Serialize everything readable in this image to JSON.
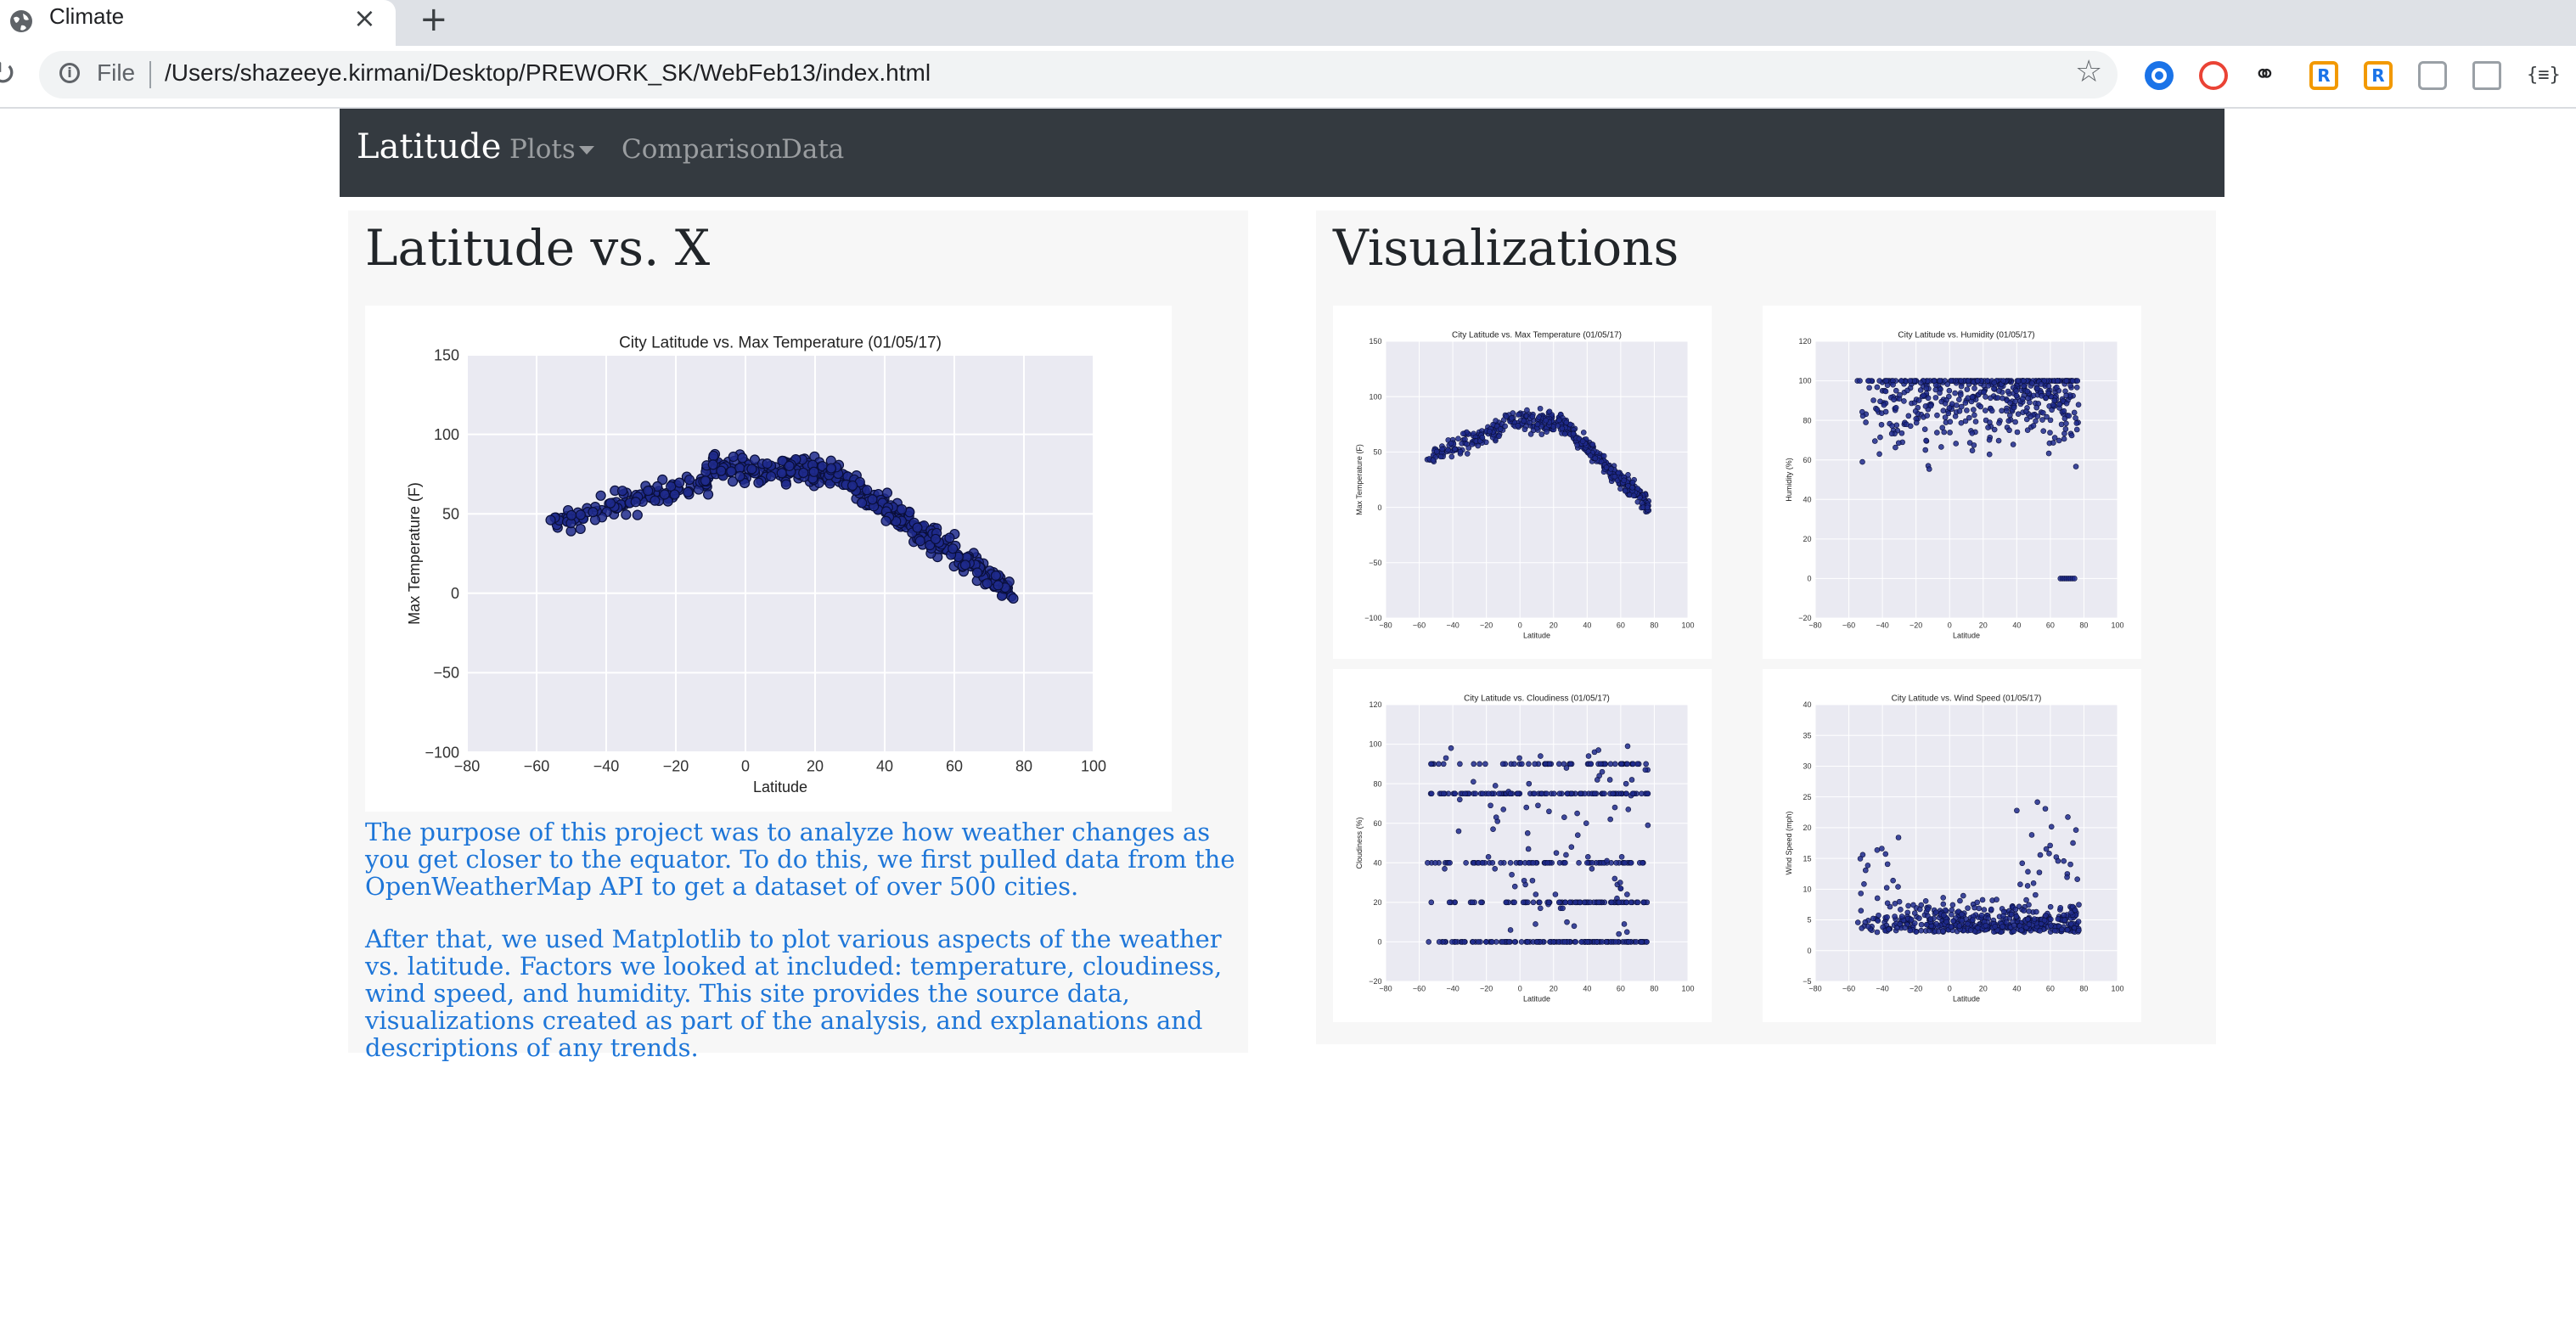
{
  "browser": {
    "tab_title": "Climate",
    "tab_close_glyph": "×",
    "new_tab_glyph": "+",
    "file_label": "File",
    "url": "/Users/shazeeye.kirmani/Desktop/PREWORK_SK/WebFeb13/index.html",
    "icons": [
      "globe-icon",
      "close-icon",
      "plus-icon",
      "reload-icon",
      "info-icon",
      "star-icon",
      "extension-icons"
    ]
  },
  "navbar": {
    "brand": "Latitude",
    "links": [
      "Plots",
      "Comparison",
      "Data"
    ]
  },
  "left_panel": {
    "title": "Latitude vs. X",
    "paragraphs": [
      "The purpose of this project was to analyze how weather changes as you get closer to the equator. To do this, we first pulled data from the OpenWeatherMap API to get a dataset of over 500 cities.",
      "After that, we used Matplotlib to plot various aspects of the weather vs. latitude. Factors we looked at included: temperature, cloudiness, wind speed, and humidity. This site provides the source data, visualizations created as part of the analysis, and explanations and descriptions of any trends."
    ]
  },
  "right_panel": {
    "title": "Visualizations"
  },
  "colors": {
    "navbar_bg": "#343a40",
    "link_blue": "#1e76d8",
    "plot_bg": "#eaeaf2",
    "point_fill": "#1f2a8c"
  },
  "chart_data": [
    {
      "type": "scatter",
      "id": "main",
      "title": "City Latitude vs. Max Temperature (01/05/17)",
      "xlabel": "Latitude",
      "ylabel": "Max Temperature (F)",
      "xlim": [
        -80,
        100
      ],
      "ylim": [
        -100,
        150
      ],
      "xticks": [
        -80,
        -60,
        -40,
        -20,
        0,
        20,
        40,
        60,
        80,
        100
      ],
      "yticks": [
        -100,
        -50,
        0,
        50,
        100,
        150
      ],
      "grid": true,
      "approximate": true,
      "shape": "temperature"
    },
    {
      "type": "scatter",
      "id": "temp",
      "title": "City Latitude vs. Max Temperature (01/05/17)",
      "xlabel": "Latitude",
      "ylabel": "Max Temperature (F)",
      "xlim": [
        -80,
        100
      ],
      "ylim": [
        -100,
        150
      ],
      "xticks": [
        -80,
        -60,
        -40,
        -20,
        0,
        20,
        40,
        60,
        80,
        100
      ],
      "yticks": [
        -100,
        -50,
        0,
        50,
        100,
        150
      ],
      "grid": true,
      "approximate": true,
      "shape": "temperature"
    },
    {
      "type": "scatter",
      "id": "humidity",
      "title": "City Latitude vs. Humidity (01/05/17)",
      "xlabel": "Latitude",
      "ylabel": "Humidity (%)",
      "xlim": [
        -80,
        100
      ],
      "ylim": [
        -20,
        120
      ],
      "xticks": [
        -80,
        -60,
        -40,
        -20,
        0,
        20,
        40,
        60,
        80,
        100
      ],
      "yticks": [
        -20,
        0,
        20,
        40,
        60,
        80,
        100,
        120
      ],
      "grid": true,
      "approximate": true,
      "shape": "humidity"
    },
    {
      "type": "scatter",
      "id": "cloudiness",
      "title": "City Latitude vs. Cloudiness (01/05/17)",
      "xlabel": "Latitude",
      "ylabel": "Cloudiness (%)",
      "xlim": [
        -80,
        100
      ],
      "ylim": [
        -20,
        120
      ],
      "xticks": [
        -80,
        -60,
        -40,
        -20,
        0,
        20,
        40,
        60,
        80,
        100
      ],
      "yticks": [
        -20,
        0,
        20,
        40,
        60,
        80,
        100,
        120
      ],
      "grid": true,
      "approximate": true,
      "shape": "cloudiness"
    },
    {
      "type": "scatter",
      "id": "wind",
      "title": "City Latitude vs. Wind Speed (01/05/17)",
      "xlabel": "Latitude",
      "ylabel": "Wind Speed (mph)",
      "xlim": [
        -80,
        100
      ],
      "ylim": [
        -5,
        40
      ],
      "xticks": [
        -80,
        -60,
        -40,
        -20,
        0,
        20,
        40,
        60,
        80,
        100
      ],
      "yticks": [
        -5,
        0,
        5,
        10,
        15,
        20,
        25,
        30,
        35,
        40
      ],
      "grid": true,
      "approximate": true,
      "shape": "wind"
    }
  ]
}
